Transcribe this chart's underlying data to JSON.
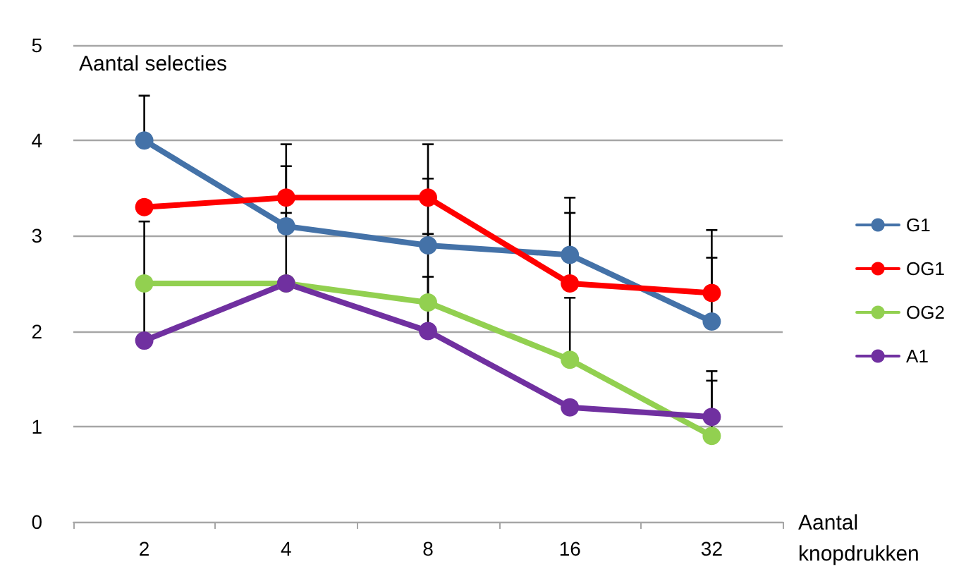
{
  "chart_data": {
    "type": "line",
    "xlabel": "Aantal knopdrukken",
    "ylabel": "Aantal selecties",
    "categories": [
      "2",
      "4",
      "8",
      "16",
      "32"
    ],
    "series": [
      {
        "name": "G1",
        "color": "#4472a8",
        "values": [
          4.0,
          3.1,
          2.9,
          2.8,
          2.1
        ],
        "errors": [
          [
            4.0,
            4.47
          ],
          [
            3.1,
            3.73
          ],
          [
            2.9,
            3.6
          ],
          [
            2.8,
            3.4
          ],
          [
            2.1,
            2.77
          ]
        ]
      },
      {
        "name": "OG1",
        "color": "#ff0000",
        "values": [
          3.3,
          3.4,
          3.4,
          2.5,
          2.4
        ],
        "errors": [
          null,
          [
            3.4,
            3.96
          ],
          [
            3.4,
            3.96
          ],
          [
            2.5,
            3.24
          ],
          [
            2.4,
            3.06
          ]
        ]
      },
      {
        "name": "OG2",
        "color": "#92d050",
        "values": [
          2.5,
          2.5,
          2.3,
          1.7,
          0.9
        ],
        "errors": [
          null,
          null,
          [
            2.3,
            3.02
          ],
          [
            1.7,
            2.35
          ],
          [
            0.9,
            1.48
          ]
        ]
      },
      {
        "name": "A1",
        "color": "#7030a0",
        "values": [
          1.9,
          2.5,
          2.0,
          1.2,
          1.1
        ],
        "errors": [
          [
            1.9,
            3.15
          ],
          [
            2.5,
            3.24
          ],
          [
            2.0,
            2.57
          ],
          null,
          [
            1.1,
            1.58
          ]
        ]
      }
    ],
    "ylim": [
      0,
      5
    ],
    "yticks": [
      0,
      1,
      2,
      3,
      4,
      5
    ],
    "grid": "y",
    "legend": "right",
    "marker": "circle",
    "line_style": "solid"
  }
}
